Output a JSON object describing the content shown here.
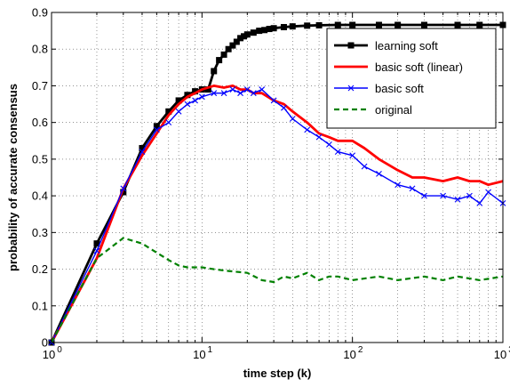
{
  "chart_data": {
    "type": "line",
    "xlabel": "time step (k)",
    "ylabel": "probability of accurate consensus",
    "xscale": "log",
    "xlim": [
      1,
      1000
    ],
    "ylim": [
      0,
      0.9
    ],
    "grid": true,
    "legend_placement": "top-right",
    "x_ticks": [
      {
        "value": 1,
        "base": "10",
        "exp": "0"
      },
      {
        "value": 10,
        "base": "10",
        "exp": "1"
      },
      {
        "value": 100,
        "base": "10",
        "exp": "2"
      },
      {
        "value": 1000,
        "base": "10",
        "exp": "3"
      }
    ],
    "y_ticks": [
      {
        "value": 0,
        "label": "0"
      },
      {
        "value": 0.1,
        "label": "0.1"
      },
      {
        "value": 0.2,
        "label": "0.2"
      },
      {
        "value": 0.3,
        "label": "0.3"
      },
      {
        "value": 0.4,
        "label": "0.4"
      },
      {
        "value": 0.5,
        "label": "0.5"
      },
      {
        "value": 0.6,
        "label": "0.6"
      },
      {
        "value": 0.7,
        "label": "0.7"
      },
      {
        "value": 0.8,
        "label": "0.8"
      },
      {
        "value": 0.9,
        "label": "0.9"
      }
    ],
    "series": [
      {
        "name": "learning soft",
        "color": "#000000",
        "style": "solid",
        "marker": "square",
        "x": [
          1,
          2,
          3,
          4,
          5,
          6,
          7,
          8,
          9,
          10,
          11,
          12,
          13,
          14,
          15,
          16,
          17,
          18,
          19,
          20,
          22,
          24,
          26,
          28,
          30,
          35,
          40,
          50,
          60,
          80,
          100,
          150,
          200,
          300,
          500,
          700,
          1000
        ],
        "y": [
          0.0,
          0.27,
          0.41,
          0.53,
          0.59,
          0.63,
          0.66,
          0.675,
          0.685,
          0.69,
          0.69,
          0.74,
          0.77,
          0.785,
          0.8,
          0.81,
          0.82,
          0.83,
          0.835,
          0.84,
          0.845,
          0.85,
          0.852,
          0.855,
          0.857,
          0.86,
          0.862,
          0.864,
          0.865,
          0.866,
          0.866,
          0.866,
          0.866,
          0.866,
          0.866,
          0.866,
          0.866
        ]
      },
      {
        "name": "basic soft (linear)",
        "color": "#ff0000",
        "style": "solid",
        "marker": "none",
        "x": [
          1,
          2,
          3,
          4,
          5,
          6,
          7,
          8,
          9,
          10,
          12,
          14,
          16,
          18,
          20,
          22,
          25,
          30,
          35,
          40,
          50,
          60,
          70,
          80,
          100,
          120,
          150,
          200,
          250,
          300,
          400,
          500,
          600,
          700,
          800,
          1000
        ],
        "y": [
          0.0,
          0.23,
          0.42,
          0.51,
          0.57,
          0.62,
          0.65,
          0.67,
          0.68,
          0.69,
          0.7,
          0.695,
          0.7,
          0.69,
          0.69,
          0.68,
          0.68,
          0.66,
          0.65,
          0.63,
          0.6,
          0.57,
          0.56,
          0.55,
          0.55,
          0.53,
          0.5,
          0.47,
          0.45,
          0.45,
          0.44,
          0.45,
          0.44,
          0.44,
          0.43,
          0.44
        ]
      },
      {
        "name": "basic soft",
        "color": "#0000ff",
        "style": "solid",
        "marker": "x",
        "x": [
          1,
          2,
          3,
          4,
          5,
          6,
          7,
          8,
          9,
          10,
          12,
          14,
          16,
          18,
          20,
          22,
          25,
          30,
          35,
          40,
          50,
          60,
          70,
          80,
          100,
          120,
          150,
          200,
          250,
          300,
          400,
          500,
          600,
          700,
          800,
          1000
        ],
        "y": [
          0.0,
          0.25,
          0.42,
          0.52,
          0.58,
          0.6,
          0.63,
          0.65,
          0.66,
          0.67,
          0.68,
          0.68,
          0.69,
          0.68,
          0.69,
          0.68,
          0.69,
          0.66,
          0.64,
          0.61,
          0.58,
          0.56,
          0.54,
          0.52,
          0.51,
          0.48,
          0.46,
          0.43,
          0.42,
          0.4,
          0.4,
          0.39,
          0.4,
          0.38,
          0.41,
          0.38
        ]
      },
      {
        "name": "original",
        "color": "#008000",
        "style": "dashed",
        "marker": "none",
        "x": [
          1,
          2,
          3,
          4,
          5,
          6,
          7,
          8,
          10,
          12,
          15,
          20,
          25,
          30,
          35,
          40,
          50,
          60,
          70,
          80,
          100,
          150,
          200,
          300,
          400,
          500,
          700,
          1000
        ],
        "y": [
          0.0,
          0.23,
          0.285,
          0.27,
          0.245,
          0.225,
          0.21,
          0.205,
          0.205,
          0.2,
          0.195,
          0.19,
          0.17,
          0.165,
          0.18,
          0.175,
          0.19,
          0.17,
          0.18,
          0.18,
          0.17,
          0.18,
          0.17,
          0.18,
          0.17,
          0.18,
          0.17,
          0.18
        ]
      }
    ]
  }
}
